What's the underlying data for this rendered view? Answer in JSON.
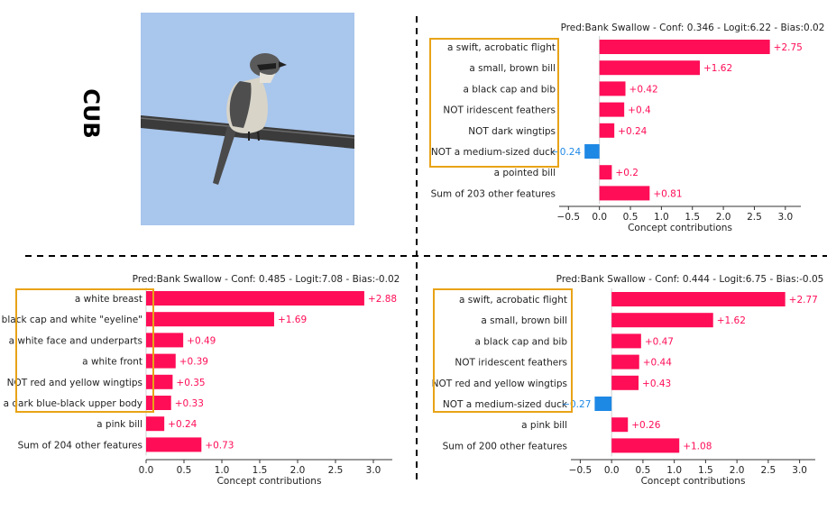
{
  "dataset_label": "CUB",
  "colors": {
    "positive": "#ff0d57",
    "negative": "#1e88e5",
    "highlight": "#e8a317",
    "sky": "#a9c6ec",
    "wire": "#3a3a3a"
  },
  "photo": {
    "icon": "bird-on-wire-photo"
  },
  "chart_data": [
    {
      "type": "bar",
      "orientation": "horizontal",
      "title": "Pred:Bank Swallow - Conf: 0.346 - Logit:6.22 - Bias:0.02",
      "xlabel": "Concept contributions",
      "xlim": [
        -0.65,
        3.25
      ],
      "xticks": [
        -0.5,
        0.0,
        0.5,
        1.0,
        1.5,
        2.0,
        2.5,
        3.0
      ],
      "xtick_labels": [
        "−0.5",
        "0.0",
        "0.5",
        "1.0",
        "1.5",
        "2.0",
        "2.5",
        "3.0"
      ],
      "categories": [
        "a swift, acrobatic flight",
        "a small, brown bill",
        "a black cap and bib",
        "NOT iridescent feathers",
        "NOT dark wingtips",
        "NOT a medium-sized duck",
        "a pointed bill",
        "Sum of 203 other features"
      ],
      "values": [
        2.75,
        1.62,
        0.42,
        0.4,
        0.24,
        -0.24,
        0.2,
        0.81
      ],
      "value_labels": [
        "+2.75",
        "+1.62",
        "+0.42",
        "+0.4",
        "+0.24",
        "−0.24",
        "+0.2",
        "+0.81"
      ],
      "highlighted_rows": 6
    },
    {
      "type": "bar",
      "orientation": "horizontal",
      "title": "Pred:Bank Swallow - Conf: 0.485 - Logit:7.08 - Bias:-0.02",
      "xlabel": "Concept contributions",
      "xlim": [
        0,
        3.25
      ],
      "xticks": [
        0.0,
        0.5,
        1.0,
        1.5,
        2.0,
        2.5,
        3.0
      ],
      "xtick_labels": [
        "0.0",
        "0.5",
        "1.0",
        "1.5",
        "2.0",
        "2.5",
        "3.0"
      ],
      "categories": [
        "a white breast",
        "black cap and white \"eyeline\"",
        "a white face and underparts",
        "a white front",
        "NOT red and yellow wingtips",
        "a dark blue-black upper body",
        "a pink bill",
        "Sum of 204 other features"
      ],
      "values": [
        2.88,
        1.69,
        0.49,
        0.39,
        0.35,
        0.33,
        0.24,
        0.73
      ],
      "value_labels": [
        "+2.88",
        "+1.69",
        "+0.49",
        "+0.39",
        "+0.35",
        "+0.33",
        "+0.24",
        "+0.73"
      ],
      "highlighted_rows": 6
    },
    {
      "type": "bar",
      "orientation": "horizontal",
      "title": "Pred:Bank Swallow - Conf: 0.444 - Logit:6.75 - Bias:-0.05",
      "xlabel": "Concept contributions",
      "xlim": [
        -0.65,
        3.25
      ],
      "xticks": [
        -0.5,
        0.0,
        0.5,
        1.0,
        1.5,
        2.0,
        2.5,
        3.0
      ],
      "xtick_labels": [
        "−0.5",
        "0.0",
        "0.5",
        "1.0",
        "1.5",
        "2.0",
        "2.5",
        "3.0"
      ],
      "categories": [
        "a swift, acrobatic flight",
        "a small, brown bill",
        "a black cap and bib",
        "NOT iridescent feathers",
        "NOT red and yellow wingtips",
        "NOT a medium-sized duck",
        "a pink bill",
        "Sum of 200 other features"
      ],
      "values": [
        2.77,
        1.62,
        0.47,
        0.44,
        0.43,
        -0.27,
        0.26,
        1.08
      ],
      "value_labels": [
        "+2.77",
        "+1.62",
        "+0.47",
        "+0.44",
        "+0.43",
        "−0.27",
        "+0.26",
        "+1.08"
      ],
      "highlighted_rows": 6
    }
  ]
}
